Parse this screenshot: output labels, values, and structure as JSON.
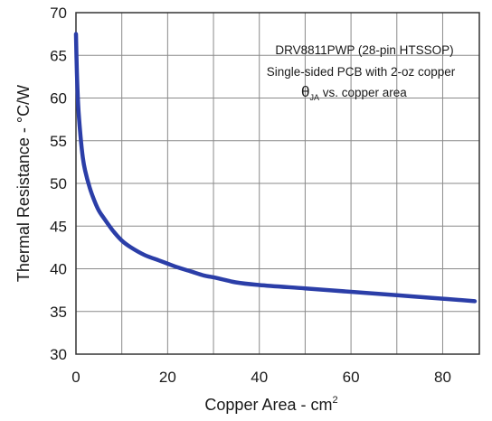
{
  "chart_data": {
    "type": "line",
    "title": "",
    "xlabel": "Copper Area - cm",
    "xlabel_sup": "2",
    "ylabel": "Thermal Resistance - °C/W",
    "xlim": [
      0,
      88
    ],
    "ylim": [
      30,
      70
    ],
    "x_ticks": [
      0,
      20,
      40,
      60,
      80
    ],
    "y_ticks": [
      30,
      35,
      40,
      45,
      50,
      55,
      60,
      65,
      70
    ],
    "x_grid_step": 10,
    "grid": true,
    "legend": "none",
    "annotations": {
      "line1": "DRV8811PWP (28-pin HTSSOP)",
      "line2": "Single-sided PCB with 2-oz copper",
      "line3_symbol": "θ",
      "line3_sub": "JA",
      "line3_text": " vs. copper area"
    },
    "series": [
      {
        "color": "#2b3ea8",
        "x": [
          0,
          0.2,
          0.5,
          1,
          1.5,
          2,
          3,
          4,
          5,
          6,
          8,
          10,
          12,
          15,
          18,
          20,
          22,
          25,
          28,
          30,
          35,
          40,
          50,
          60,
          70,
          80,
          87
        ],
        "y": [
          67.5,
          63,
          59,
          55.5,
          53,
          51.5,
          49.5,
          48,
          46.8,
          46,
          44.5,
          43.3,
          42.5,
          41.6,
          41,
          40.6,
          40.2,
          39.7,
          39.2,
          39,
          38.4,
          38.1,
          37.7,
          37.3,
          36.9,
          36.5,
          36.2
        ]
      }
    ]
  }
}
